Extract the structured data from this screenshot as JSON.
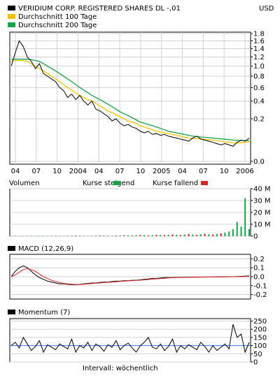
{
  "header": {
    "title": "VERIDIUM CORP. REGISTERED SHARES DL -,01",
    "currency": "USD",
    "legend": [
      {
        "label": "VERIDIUM CORP. REGISTERED SHARES DL -,01",
        "color": "#000000"
      },
      {
        "label": "Durchschnitt 100 Tage",
        "color": "#f5c200"
      },
      {
        "label": "Durchschnitt 200 Tage",
        "color": "#16a34a"
      }
    ]
  },
  "footer": {
    "interval": "Intervall: wöchentlich"
  },
  "chart_data": [
    {
      "type": "line",
      "name": "price",
      "x_tick_labels": [
        "04",
        "07",
        "10",
        "2004",
        "04",
        "07",
        "10",
        "2005",
        "04",
        "07",
        "10",
        "2006"
      ],
      "y_ticks": [
        0.0,
        0.2,
        0.4,
        0.6,
        0.8,
        1.0,
        1.2,
        1.4,
        1.6,
        1.8
      ],
      "y_tick_labels": [
        "0.0",
        "0.2",
        "0.4",
        "0.6",
        "0.8",
        "1.0",
        "1.2",
        "1.4",
        "1.6",
        "1.8"
      ],
      "series": [
        {
          "name": "VERIDIUM CORP. REGISTERED SHARES DL -,01",
          "color": "#000000",
          "values": [
            1.0,
            1.3,
            1.6,
            1.45,
            1.2,
            1.1,
            0.95,
            1.05,
            0.85,
            0.8,
            0.75,
            0.7,
            0.6,
            0.55,
            0.45,
            0.5,
            0.42,
            0.48,
            0.4,
            0.35,
            0.4,
            0.3,
            0.28,
            0.25,
            0.22,
            0.18,
            0.2,
            0.16,
            0.14,
            0.15,
            0.13,
            0.12,
            0.1,
            0.09,
            0.1,
            0.08,
            0.085,
            0.075,
            0.08,
            0.07,
            0.065,
            0.06,
            0.055,
            0.05,
            0.045,
            0.06,
            0.07,
            0.055,
            0.05,
            0.045,
            0.04,
            0.035,
            0.03,
            0.035,
            0.03,
            0.025,
            0.04,
            0.05,
            0.045,
            0.06
          ]
        },
        {
          "name": "Durchschnitt 100 Tage",
          "color": "#f5c200",
          "values": [
            1.1,
            1.12,
            1.12,
            1.12,
            1.1,
            1.05,
            1.0,
            0.95,
            0.9,
            0.85,
            0.8,
            0.75,
            0.7,
            0.65,
            0.6,
            0.56,
            0.52,
            0.48,
            0.45,
            0.42,
            0.4,
            0.37,
            0.34,
            0.31,
            0.28,
            0.26,
            0.24,
            0.22,
            0.2,
            0.18,
            0.17,
            0.16,
            0.14,
            0.13,
            0.12,
            0.11,
            0.1,
            0.095,
            0.09,
            0.085,
            0.08,
            0.075,
            0.07,
            0.065,
            0.06,
            0.058,
            0.056,
            0.055,
            0.054,
            0.052,
            0.05,
            0.048,
            0.045,
            0.042,
            0.04,
            0.038,
            0.037,
            0.038,
            0.04,
            0.042
          ]
        },
        {
          "name": "Durchschnitt 200 Tage",
          "color": "#16a34a",
          "values": [
            1.15,
            1.15,
            1.15,
            1.15,
            1.15,
            1.14,
            1.12,
            1.1,
            1.05,
            1.0,
            0.95,
            0.9,
            0.85,
            0.8,
            0.75,
            0.7,
            0.65,
            0.6,
            0.56,
            0.52,
            0.48,
            0.45,
            0.42,
            0.39,
            0.36,
            0.33,
            0.3,
            0.27,
            0.25,
            0.23,
            0.21,
            0.19,
            0.17,
            0.16,
            0.15,
            0.14,
            0.13,
            0.12,
            0.11,
            0.1,
            0.095,
            0.09,
            0.085,
            0.08,
            0.075,
            0.07,
            0.068,
            0.066,
            0.064,
            0.062,
            0.06,
            0.058,
            0.056,
            0.054,
            0.052,
            0.05,
            0.049,
            0.048,
            0.048,
            0.047
          ]
        }
      ]
    },
    {
      "type": "bar",
      "name": "volume",
      "legend": [
        {
          "label": "Volumen",
          "color": null
        },
        {
          "label": "Kurse steigend",
          "color": "#16a34a"
        },
        {
          "label": "Kurse fallend",
          "color": "#dc2626"
        }
      ],
      "y_ticks": [
        0,
        10,
        20,
        30,
        40
      ],
      "y_tick_labels": [
        "0",
        "10 M",
        "20 M",
        "30 M",
        "40 M"
      ],
      "values": [
        0.2,
        0.3,
        0.2,
        0.1,
        0.2,
        0.3,
        0.2,
        0.2,
        0.1,
        0.2,
        0.3,
        0.4,
        0.2,
        0.2,
        0.3,
        0.4,
        0.5,
        0.4,
        0.3,
        0.2,
        0.3,
        0.4,
        0.6,
        0.5,
        0.4,
        0.3,
        0.5,
        0.6,
        0.8,
        0.7,
        0.6,
        0.8,
        1.0,
        0.9,
        0.7,
        0.8,
        1.2,
        1.0,
        0.9,
        1.1,
        1.5,
        1.2,
        1.0,
        1.3,
        1.8,
        1.4,
        1.2,
        1.5,
        2.0,
        1.6,
        1.4,
        1.8,
        2.5,
        3.0,
        4.0,
        6.0,
        12.0,
        8.0,
        32.0,
        6.0
      ],
      "directions": [
        "u",
        "d",
        "u",
        "d",
        "u",
        "d",
        "u",
        "u",
        "d",
        "u",
        "d",
        "u",
        "d",
        "u",
        "d",
        "u",
        "d",
        "u",
        "d",
        "u",
        "d",
        "u",
        "d",
        "u",
        "d",
        "u",
        "d",
        "u",
        "d",
        "u",
        "d",
        "u",
        "d",
        "u",
        "d",
        "u",
        "d",
        "u",
        "d",
        "u",
        "d",
        "u",
        "d",
        "u",
        "d",
        "u",
        "d",
        "u",
        "d",
        "u",
        "d",
        "u",
        "d",
        "u",
        "u",
        "u",
        "u",
        "u",
        "u",
        "u"
      ]
    },
    {
      "type": "line",
      "name": "MACD",
      "label": "MACD (12,26,9)",
      "y_ticks": [
        0.2,
        0.1,
        0.0,
        -0.1,
        -0.2
      ],
      "y_tick_labels": [
        "0.2",
        "0.1",
        "0.0",
        "-0.1",
        "-0.2"
      ],
      "series": [
        {
          "color": "#000000",
          "values": [
            0.0,
            0.06,
            0.1,
            0.12,
            0.1,
            0.06,
            0.02,
            -0.01,
            -0.03,
            -0.05,
            -0.06,
            -0.07,
            -0.08,
            -0.08,
            -0.085,
            -0.09,
            -0.09,
            -0.085,
            -0.08,
            -0.075,
            -0.07,
            -0.07,
            -0.065,
            -0.06,
            -0.06,
            -0.055,
            -0.05,
            -0.05,
            -0.045,
            -0.045,
            -0.04,
            -0.04,
            -0.035,
            -0.03,
            -0.025,
            -0.02,
            -0.02,
            -0.015,
            -0.01,
            -0.01,
            -0.01,
            -0.008,
            -0.008,
            -0.006,
            -0.006,
            -0.005,
            -0.005,
            -0.004,
            -0.004,
            -0.003,
            -0.003,
            -0.002,
            -0.002,
            -0.001,
            0.0,
            0.0,
            0.002,
            0.004,
            0.006,
            0.008
          ]
        },
        {
          "color": "#dc2626",
          "values": [
            0.0,
            0.02,
            0.05,
            0.08,
            0.09,
            0.08,
            0.06,
            0.03,
            0.0,
            -0.02,
            -0.04,
            -0.055,
            -0.065,
            -0.075,
            -0.08,
            -0.085,
            -0.088,
            -0.087,
            -0.084,
            -0.08,
            -0.076,
            -0.073,
            -0.07,
            -0.066,
            -0.063,
            -0.06,
            -0.056,
            -0.053,
            -0.05,
            -0.047,
            -0.044,
            -0.042,
            -0.039,
            -0.035,
            -0.031,
            -0.027,
            -0.024,
            -0.02,
            -0.017,
            -0.014,
            -0.012,
            -0.01,
            -0.009,
            -0.008,
            -0.007,
            -0.006,
            -0.006,
            -0.005,
            -0.005,
            -0.004,
            -0.004,
            -0.003,
            -0.003,
            -0.002,
            -0.001,
            -0.001,
            0.0,
            0.001,
            0.002,
            0.004
          ]
        }
      ]
    },
    {
      "type": "line",
      "name": "Momentum",
      "label": "Momentum (7)",
      "y_ticks": [
        250,
        200,
        150,
        100,
        50,
        0
      ],
      "y_tick_labels": [
        "250",
        "200",
        "150",
        "100",
        "50",
        "0"
      ],
      "reference_line": 100,
      "series": [
        {
          "color": "#000000",
          "values": [
            100,
            120,
            85,
            150,
            110,
            70,
            95,
            130,
            60,
            105,
            90,
            75,
            110,
            95,
            80,
            140,
            60,
            100,
            85,
            120,
            70,
            110,
            95,
            65,
            105,
            90,
            130,
            75,
            100,
            115,
            85,
            60,
            100,
            120,
            150,
            90,
            80,
            110,
            70,
            95,
            140,
            60,
            100,
            80,
            105,
            90,
            75,
            120,
            95,
            60,
            100,
            70,
            90,
            110,
            80,
            230,
            150,
            170,
            60,
            120
          ]
        }
      ]
    }
  ]
}
